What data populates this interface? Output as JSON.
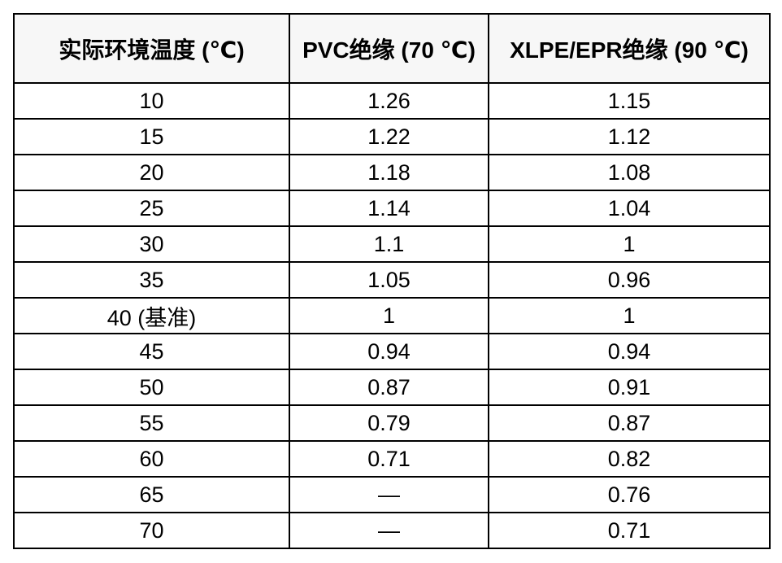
{
  "colors": {
    "page_background": "#ffffff",
    "header_background": "#f7f7f7",
    "border": "#000000",
    "text": "#000000"
  },
  "table": {
    "columns": [
      "实际环境温度 (℃)",
      "PVC绝缘 (70 ℃)",
      "XLPE/EPR绝缘 (90 ℃)"
    ],
    "rows": [
      [
        "10",
        "1.26",
        "1.15"
      ],
      [
        "15",
        "1.22",
        "1.12"
      ],
      [
        "20",
        "1.18",
        "1.08"
      ],
      [
        "25",
        "1.14",
        "1.04"
      ],
      [
        "30",
        "1.1",
        "1"
      ],
      [
        "35",
        "1.05",
        "0.96"
      ],
      [
        "40 (基准)",
        "1",
        "1"
      ],
      [
        "45",
        "0.94",
        "0.94"
      ],
      [
        "50",
        "0.87",
        "0.91"
      ],
      [
        "55",
        "0.79",
        "0.87"
      ],
      [
        "60",
        "0.71",
        "0.82"
      ],
      [
        "65",
        "—",
        "0.76"
      ],
      [
        "70",
        "—",
        "0.71"
      ]
    ]
  },
  "chart_data": {
    "type": "table",
    "columns": [
      "实际环境温度 (℃)",
      "PVC绝缘 (70 ℃)",
      "XLPE/EPR绝缘 (90 ℃)"
    ],
    "rows": [
      [
        "10",
        "1.26",
        "1.15"
      ],
      [
        "15",
        "1.22",
        "1.12"
      ],
      [
        "20",
        "1.18",
        "1.08"
      ],
      [
        "25",
        "1.14",
        "1.04"
      ],
      [
        "30",
        "1.1",
        "1"
      ],
      [
        "35",
        "1.05",
        "0.96"
      ],
      [
        "40 (基准)",
        "1",
        "1"
      ],
      [
        "45",
        "0.94",
        "0.94"
      ],
      [
        "50",
        "0.87",
        "0.91"
      ],
      [
        "55",
        "0.79",
        "0.87"
      ],
      [
        "60",
        "0.71",
        "0.82"
      ],
      [
        "65",
        "—",
        "0.76"
      ],
      [
        "70",
        "—",
        "0.71"
      ]
    ]
  }
}
